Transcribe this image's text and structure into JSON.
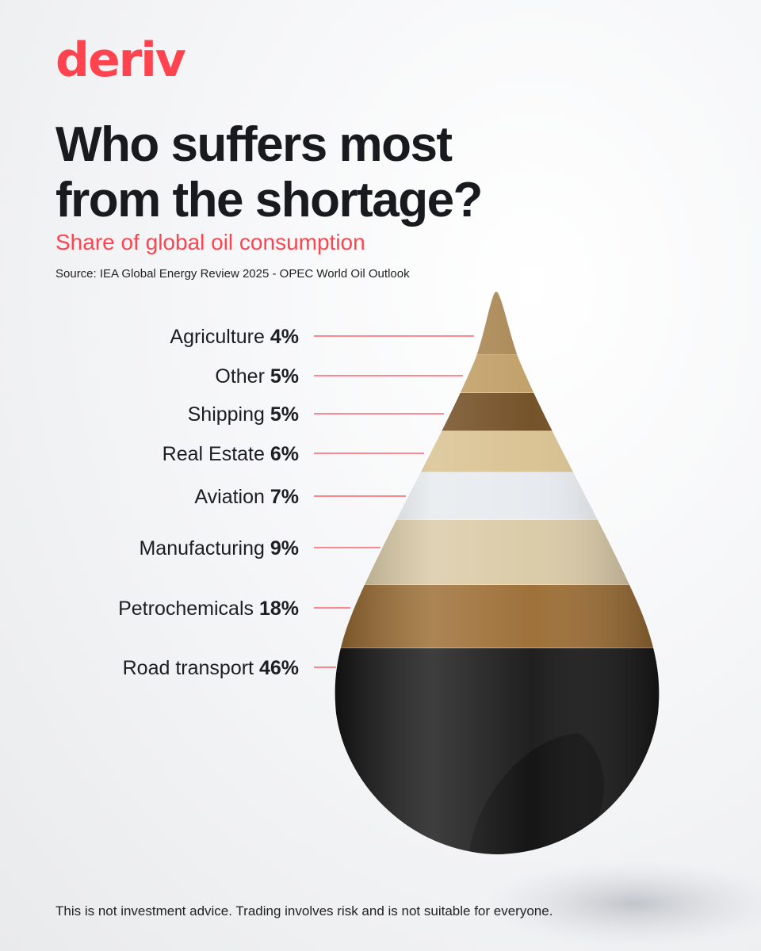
{
  "brand": {
    "logo_text": "deriv",
    "accent_color": "#ff444f"
  },
  "header": {
    "title": "Who suffers most from the shortage?",
    "subtitle": "Share of global oil consumption",
    "source": "Source: IEA Global Energy Review 2025 - OPEC World Oil Outlook"
  },
  "chart_data": {
    "type": "pie",
    "style": "oil-drop stacked layers",
    "unit": "%",
    "categories": [
      "Agriculture",
      "Other",
      "Shipping",
      "Real Estate",
      "Aviation",
      "Manufacturing",
      "Petrochemicals",
      "Road transport"
    ],
    "values": [
      4,
      5,
      5,
      6,
      7,
      9,
      18,
      46
    ],
    "value_labels": [
      "4%",
      "5%",
      "5%",
      "6%",
      "7%",
      "9%",
      "18%",
      "46%"
    ],
    "layer_colors": [
      "#a8844f",
      "#bf9c62",
      "#6e4a1e",
      "#d8c08e",
      "#e6eaee",
      "#d9c9a4",
      "#9a6a2f",
      "#141414"
    ]
  },
  "footer": {
    "disclaimer": "This is not investment advice. Trading involves risk and is not suitable for everyone."
  }
}
